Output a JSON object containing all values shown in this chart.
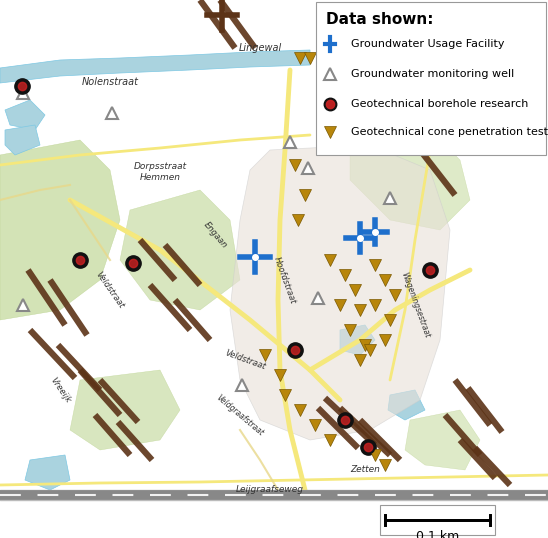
{
  "title": "Data shown:",
  "legend_items": [
    {
      "label": "Groundwater Usage Facility",
      "marker": "D",
      "color": "#1E6FCC",
      "size": 8
    },
    {
      "label": "Groundwater monitoring well",
      "marker": "^",
      "color": "#555555",
      "size": 8
    },
    {
      "label": "Geotechnical borehole research",
      "marker": "o",
      "color": "#8B1A1A",
      "size": 7
    },
    {
      "label": "Geotechnical cone penetration test",
      "marker": "v",
      "color": "#B8860B",
      "size": 9
    }
  ],
  "fig_width": 5.48,
  "fig_height": 5.38,
  "dpi": 100,
  "title_fontsize": 11,
  "legend_fontsize": 8.0,
  "scalebar_text": "0.1 km",
  "map_bg": "#ffffff",
  "road_brown_color": "#5C3317",
  "road_yellow_color": "#F5E87C",
  "water_color": "#AAD3DF",
  "green_color": "#C8DCA4",
  "urban_color": "#E8E0D8",
  "rail_color": "#AAAAAA"
}
